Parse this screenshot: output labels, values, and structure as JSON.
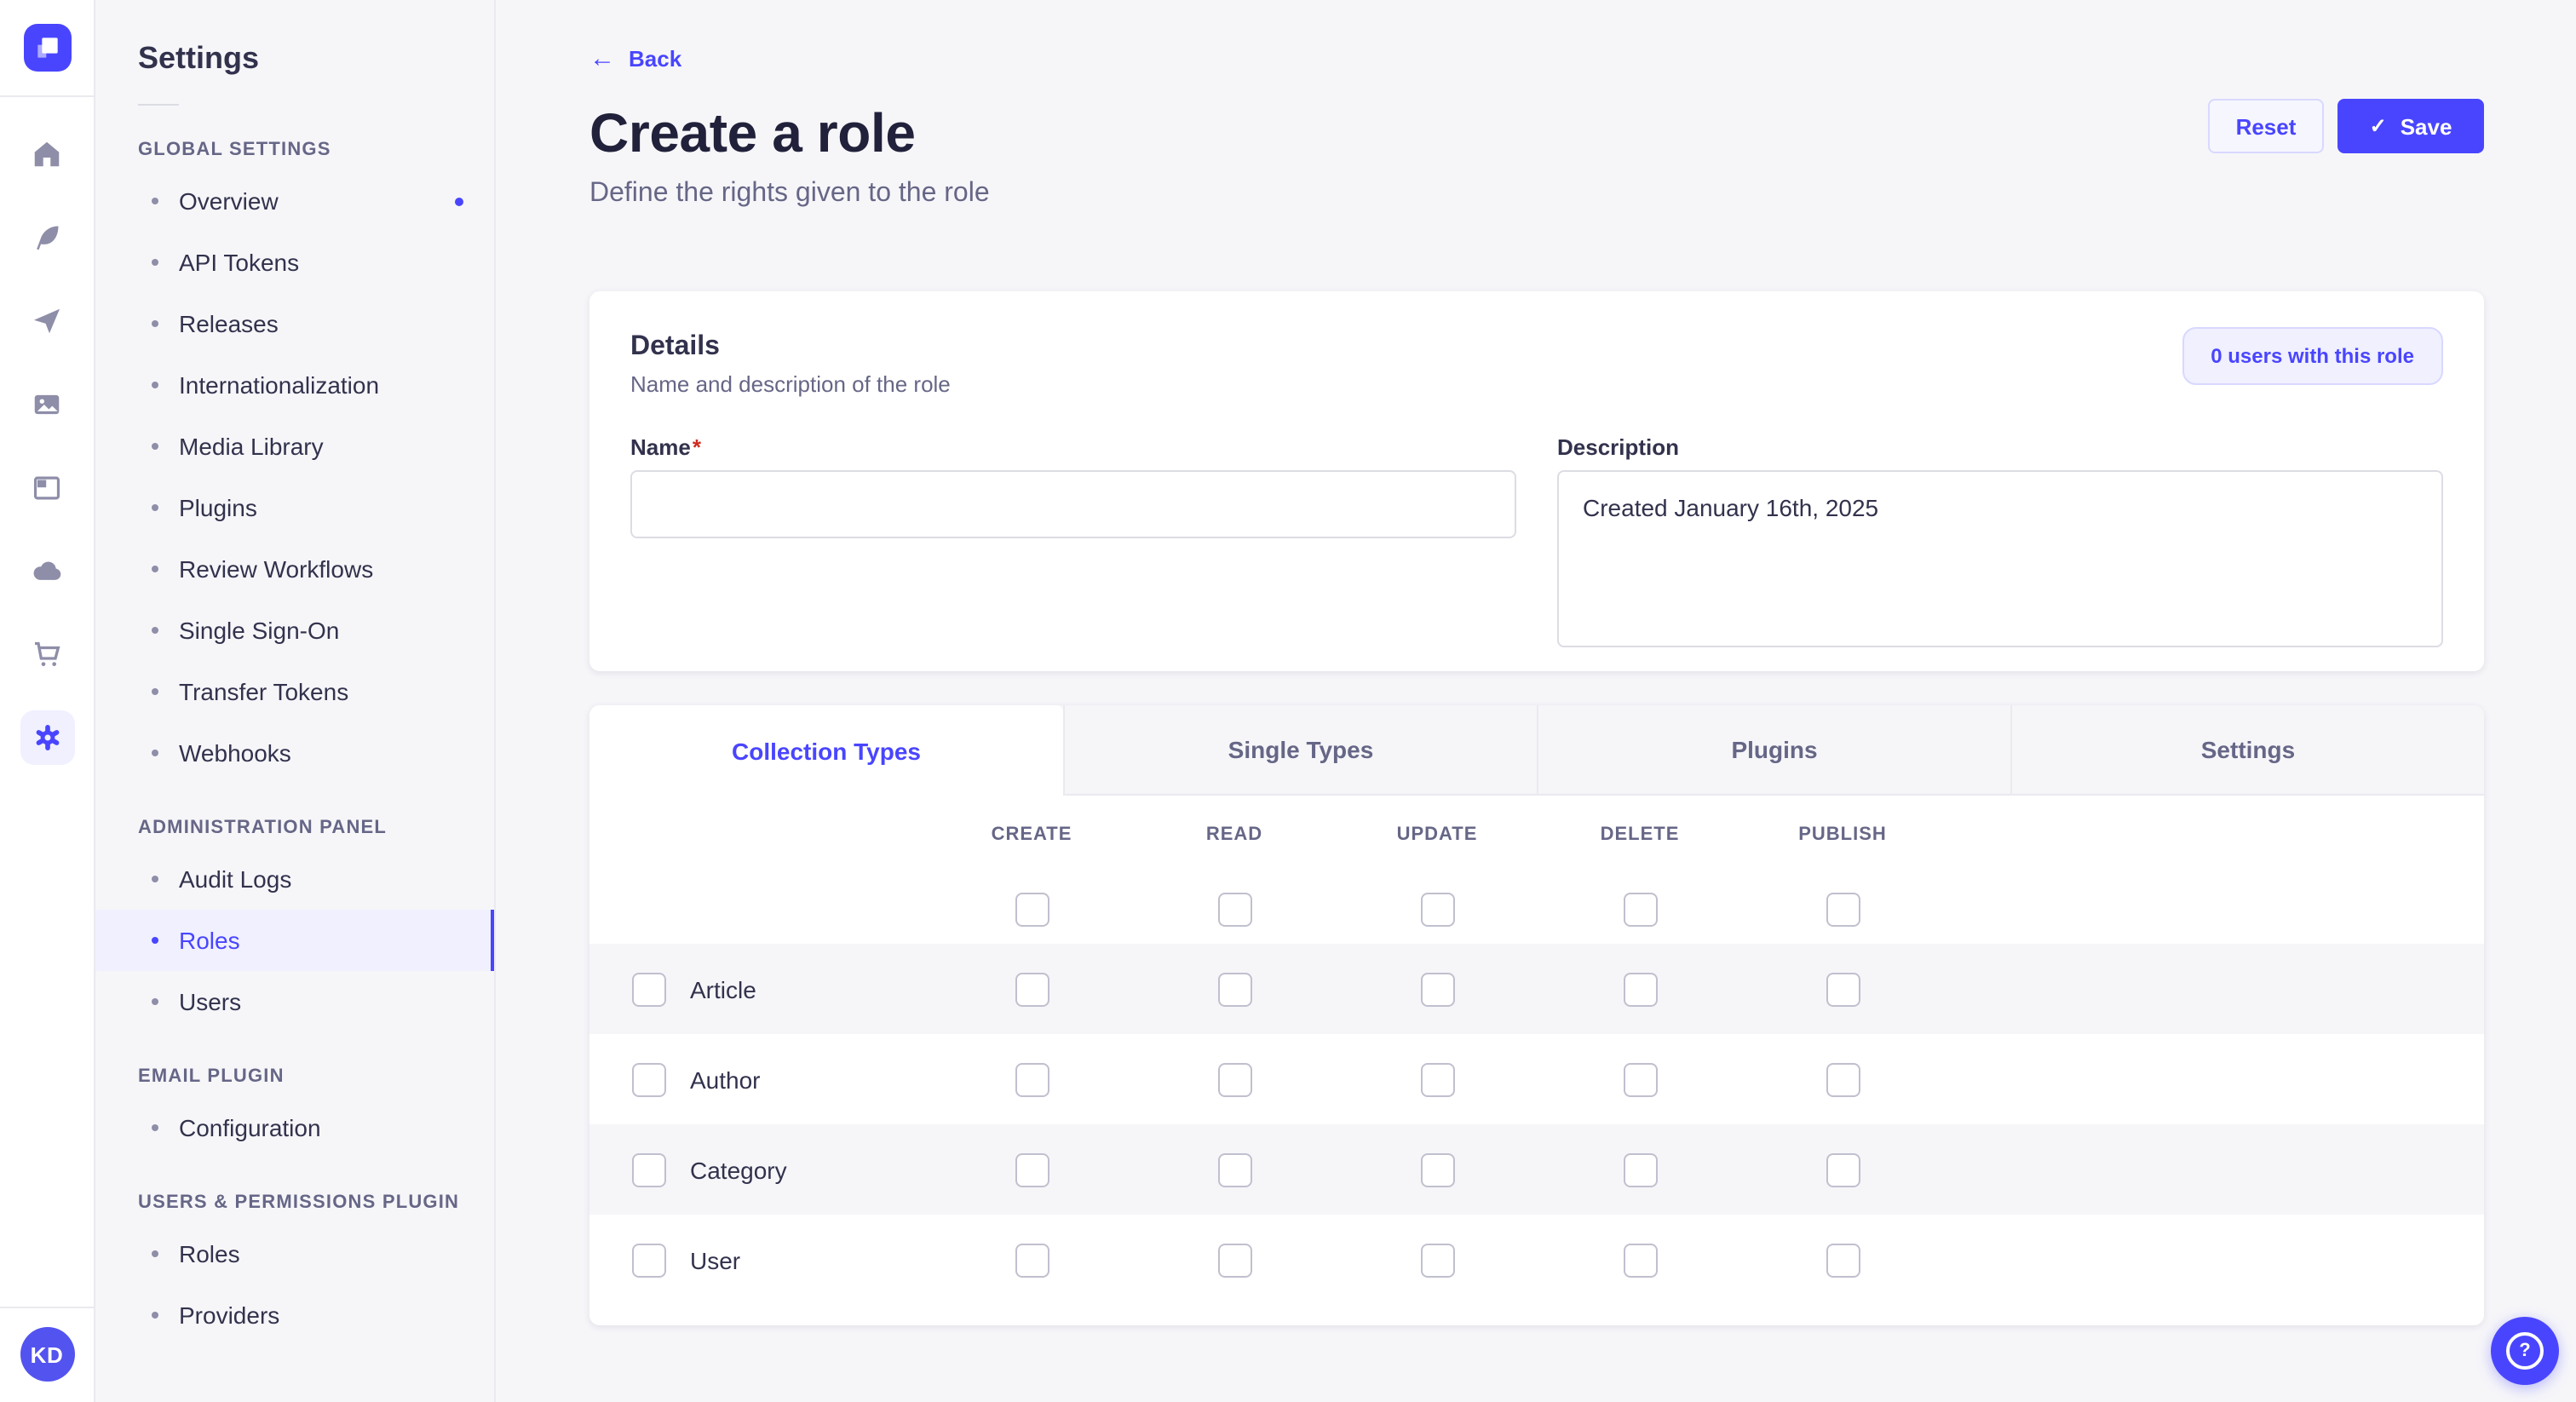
{
  "rail": {
    "logo": "strapi-logo",
    "icons": [
      {
        "name": "home-icon"
      },
      {
        "name": "content-feather-icon"
      },
      {
        "name": "send-icon"
      },
      {
        "name": "media-library-icon"
      },
      {
        "name": "layout-icon"
      },
      {
        "name": "cloud-icon"
      },
      {
        "name": "marketplace-cart-icon"
      },
      {
        "name": "settings-gear-icon",
        "active": true
      }
    ],
    "user_initials": "KD"
  },
  "sidebar": {
    "title": "Settings",
    "sections": [
      {
        "label": "GLOBAL SETTINGS",
        "items": [
          {
            "label": "Overview",
            "dot": true
          },
          {
            "label": "API Tokens"
          },
          {
            "label": "Releases"
          },
          {
            "label": "Internationalization"
          },
          {
            "label": "Media Library"
          },
          {
            "label": "Plugins"
          },
          {
            "label": "Review Workflows"
          },
          {
            "label": "Single Sign-On"
          },
          {
            "label": "Transfer Tokens"
          },
          {
            "label": "Webhooks"
          }
        ]
      },
      {
        "label": "ADMINISTRATION PANEL",
        "items": [
          {
            "label": "Audit Logs"
          },
          {
            "label": "Roles",
            "active": true
          },
          {
            "label": "Users"
          }
        ]
      },
      {
        "label": "EMAIL PLUGIN",
        "items": [
          {
            "label": "Configuration"
          }
        ]
      },
      {
        "label": "USERS & PERMISSIONS PLUGIN",
        "items": [
          {
            "label": "Roles"
          },
          {
            "label": "Providers"
          }
        ]
      }
    ]
  },
  "header": {
    "back_label": "Back",
    "title": "Create a role",
    "subtitle": "Define the rights given to the role",
    "reset_label": "Reset",
    "save_label": "Save",
    "save_check": "✓",
    "back_arrow": "←"
  },
  "details": {
    "title": "Details",
    "subtitle": "Name and description of the role",
    "users_badge": "0 users with this role",
    "name_label": "Name",
    "required_mark": "*",
    "name_value": "",
    "description_label": "Description",
    "description_value": "Created January 16th, 2025"
  },
  "tabs": [
    {
      "label": "Collection Types",
      "active": true
    },
    {
      "label": "Single Types"
    },
    {
      "label": "Plugins"
    },
    {
      "label": "Settings"
    }
  ],
  "permissions": {
    "columns": [
      "CREATE",
      "READ",
      "UPDATE",
      "DELETE",
      "PUBLISH"
    ],
    "header_checkboxes_checked": [
      false,
      false,
      false,
      false,
      false
    ],
    "rows": [
      {
        "label": "Article",
        "row_checked": false,
        "checked": [
          false,
          false,
          false,
          false,
          false
        ]
      },
      {
        "label": "Author",
        "row_checked": false,
        "checked": [
          false,
          false,
          false,
          false,
          false
        ]
      },
      {
        "label": "Category",
        "row_checked": false,
        "checked": [
          false,
          false,
          false,
          false,
          false
        ]
      },
      {
        "label": "User",
        "row_checked": false,
        "checked": [
          false,
          false,
          false,
          false,
          false
        ]
      }
    ]
  },
  "help": {
    "label": "?"
  }
}
